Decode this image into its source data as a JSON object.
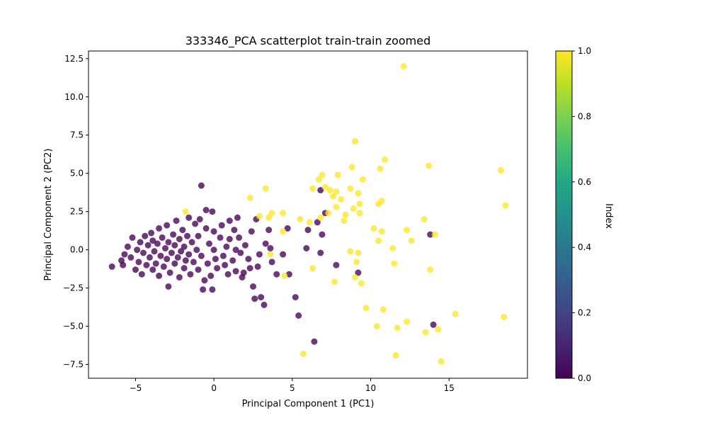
{
  "chart_data": {
    "type": "scatter",
    "title": "333346_PCA scatterplot train-train zoomed",
    "xlabel": "Principal Component 1 (PC1)",
    "ylabel": "Principal Component 2 (PC2)",
    "xlim": [
      -8.0,
      20.0
    ],
    "ylim": [
      -8.4,
      13.0
    ],
    "xticks": [
      -5,
      0,
      5,
      10,
      15
    ],
    "xtick_labels": [
      "−5",
      "0",
      "5",
      "10",
      "15"
    ],
    "yticks": [
      -7.5,
      -5.0,
      -2.5,
      0.0,
      2.5,
      5.0,
      7.5,
      10.0,
      12.5
    ],
    "ytick_labels": [
      "−7.5",
      "−5.0",
      "−2.5",
      "0.0",
      "2.5",
      "5.0",
      "7.5",
      "10.0",
      "12.5"
    ],
    "grid": false,
    "colorbar": {
      "label": "Index",
      "colormap": "viridis",
      "range": [
        0.0,
        1.0
      ],
      "ticks": [
        0.0,
        0.2,
        0.4,
        0.6,
        0.8,
        1.0
      ],
      "tick_labels": [
        "0.0",
        "0.2",
        "0.4",
        "0.6",
        "0.8",
        "1.0"
      ]
    },
    "colors": {
      "index_0": "#440154",
      "index_1": "#fde725"
    },
    "series": [
      {
        "name": "0",
        "color": "#440154",
        "points": [
          [
            -6.5,
            -1.1
          ],
          [
            -5.9,
            -0.7
          ],
          [
            -5.7,
            -0.3
          ],
          [
            -5.8,
            -1.0
          ],
          [
            -5.5,
            0.2
          ],
          [
            -5.3,
            -0.5
          ],
          [
            -5.2,
            0.8
          ],
          [
            -5.0,
            -1.3
          ],
          [
            -4.9,
            0.0
          ],
          [
            -4.8,
            -0.8
          ],
          [
            -4.7,
            0.5
          ],
          [
            -4.6,
            -1.6
          ],
          [
            -4.5,
            -0.2
          ],
          [
            -4.4,
            0.9
          ],
          [
            -4.3,
            -1.0
          ],
          [
            -4.2,
            0.3
          ],
          [
            -4.1,
            -0.5
          ],
          [
            -4.0,
            1.1
          ],
          [
            -3.9,
            -1.3
          ],
          [
            -3.9,
            0.6
          ],
          [
            -3.8,
            -0.1
          ],
          [
            -3.7,
            -0.9
          ],
          [
            -3.6,
            0.4
          ],
          [
            -3.5,
            1.4
          ],
          [
            -3.5,
            -1.7
          ],
          [
            -3.4,
            -0.4
          ],
          [
            -3.3,
            0.8
          ],
          [
            -3.2,
            -1.1
          ],
          [
            -3.1,
            0.1
          ],
          [
            -3.0,
            -0.6
          ],
          [
            -3.0,
            1.6
          ],
          [
            -2.9,
            -2.4
          ],
          [
            -2.9,
            0.5
          ],
          [
            -2.8,
            -1.5
          ],
          [
            -2.7,
            -0.2
          ],
          [
            -2.6,
            1.0
          ],
          [
            -2.5,
            -0.9
          ],
          [
            -2.5,
            0.3
          ],
          [
            -2.4,
            1.9
          ],
          [
            -2.3,
            -0.5
          ],
          [
            -2.2,
            -1.8
          ],
          [
            -2.2,
            0.7
          ],
          [
            -2.1,
            -0.1
          ],
          [
            -2.0,
            1.3
          ],
          [
            -1.9,
            -1.2
          ],
          [
            -1.9,
            0.2
          ],
          [
            -1.8,
            -0.7
          ],
          [
            -1.7,
            0.9
          ],
          [
            -1.6,
            2.1
          ],
          [
            -1.6,
            -0.3
          ],
          [
            -1.5,
            -1.6
          ],
          [
            -1.4,
            0.5
          ],
          [
            -1.3,
            -0.8
          ],
          [
            -1.2,
            1.7
          ],
          [
            -1.1,
            0.0
          ],
          [
            -1.0,
            -1.3
          ],
          [
            -1.0,
            0.9
          ],
          [
            -0.9,
            2.0
          ],
          [
            -0.8,
            -0.4
          ],
          [
            -0.8,
            4.2
          ],
          [
            -0.7,
            -2.6
          ],
          [
            -0.6,
            -2.0
          ],
          [
            -0.5,
            2.6
          ],
          [
            -0.5,
            1.4
          ],
          [
            -0.4,
            -0.9
          ],
          [
            -0.3,
            0.4
          ],
          [
            -0.2,
            -1.7
          ],
          [
            -0.1,
            2.5
          ],
          [
            -0.1,
            -2.6
          ],
          [
            0.0,
            1.2
          ],
          [
            0.0,
            0.0
          ],
          [
            0.1,
            -0.6
          ],
          [
            0.2,
            -1.2
          ],
          [
            0.4,
            0.8
          ],
          [
            0.5,
            1.6
          ],
          [
            0.6,
            -0.4
          ],
          [
            0.7,
            -1.0
          ],
          [
            0.8,
            0.2
          ],
          [
            0.9,
            -1.6
          ],
          [
            1.0,
            1.9
          ],
          [
            1.0,
            0.7
          ],
          [
            1.2,
            -0.7
          ],
          [
            1.3,
            1.3
          ],
          [
            1.4,
            0.0
          ],
          [
            1.4,
            -1.4
          ],
          [
            1.5,
            2.1
          ],
          [
            1.6,
            0.8
          ],
          [
            1.7,
            -0.2
          ],
          [
            1.8,
            -1.8
          ],
          [
            1.9,
            -1.5
          ],
          [
            2.0,
            0.3
          ],
          [
            2.2,
            -0.6
          ],
          [
            2.3,
            -1.2
          ],
          [
            2.4,
            1.2
          ],
          [
            2.5,
            -2.4
          ],
          [
            2.6,
            -3.2
          ],
          [
            2.7,
            2.0
          ],
          [
            2.8,
            -1.1
          ],
          [
            2.9,
            -0.3
          ],
          [
            3.0,
            -3.1
          ],
          [
            3.2,
            -3.6
          ],
          [
            3.3,
            0.4
          ],
          [
            3.5,
            1.3
          ],
          [
            3.6,
            0.1
          ],
          [
            3.7,
            -0.8
          ],
          [
            4.0,
            -1.6
          ],
          [
            4.4,
            -0.3
          ],
          [
            4.7,
            1.4
          ],
          [
            4.8,
            -1.6
          ],
          [
            5.2,
            -3.1
          ],
          [
            5.4,
            -4.3
          ],
          [
            5.9,
            0.1
          ],
          [
            6.0,
            1.3
          ],
          [
            6.4,
            -6.0
          ],
          [
            6.6,
            1.8
          ],
          [
            6.8,
            3.9
          ],
          [
            6.8,
            -0.2
          ],
          [
            6.9,
            1.0
          ],
          [
            7.1,
            2.4
          ],
          [
            7.8,
            -1.0
          ],
          [
            9.2,
            -1.5
          ],
          [
            13.8,
            1.0
          ],
          [
            14.0,
            -4.9
          ]
        ]
      },
      {
        "name": "1",
        "color": "#fde725",
        "points": [
          [
            -1.8,
            2.5
          ],
          [
            2.3,
            3.4
          ],
          [
            3.3,
            4.0
          ],
          [
            2.9,
            2.2
          ],
          [
            3.5,
            2.1
          ],
          [
            3.7,
            2.4
          ],
          [
            4.4,
            2.4
          ],
          [
            4.4,
            1.2
          ],
          [
            4.5,
            -1.7
          ],
          [
            3.6,
            -0.3
          ],
          [
            5.5,
            2.0
          ],
          [
            5.7,
            -6.8
          ],
          [
            6.1,
            1.8
          ],
          [
            6.3,
            4.0
          ],
          [
            6.3,
            -1.2
          ],
          [
            6.7,
            4.6
          ],
          [
            6.9,
            4.9
          ],
          [
            6.8,
            2.1
          ],
          [
            7.1,
            4.1
          ],
          [
            7.3,
            2.4
          ],
          [
            7.4,
            3.9
          ],
          [
            7.6,
            3.5
          ],
          [
            7.7,
            -2.1
          ],
          [
            7.8,
            2.8
          ],
          [
            7.8,
            3.8
          ],
          [
            7.9,
            4.9
          ],
          [
            8.1,
            3.3
          ],
          [
            8.3,
            1.9
          ],
          [
            8.4,
            2.3
          ],
          [
            8.7,
            4.0
          ],
          [
            8.7,
            -0.1
          ],
          [
            8.8,
            5.4
          ],
          [
            8.9,
            2.7
          ],
          [
            9.0,
            7.1
          ],
          [
            9.0,
            -1.8
          ],
          [
            9.1,
            -0.8
          ],
          [
            9.2,
            -0.2
          ],
          [
            9.2,
            3.7
          ],
          [
            9.3,
            2.4
          ],
          [
            9.3,
            3.0
          ],
          [
            9.4,
            -2.2
          ],
          [
            9.5,
            4.6
          ],
          [
            9.7,
            -3.8
          ],
          [
            10.2,
            1.4
          ],
          [
            10.4,
            -5.0
          ],
          [
            10.5,
            0.6
          ],
          [
            10.5,
            3.0
          ],
          [
            10.6,
            5.3
          ],
          [
            10.7,
            1.2
          ],
          [
            10.7,
            3.2
          ],
          [
            10.8,
            -3.9
          ],
          [
            10.9,
            5.9
          ],
          [
            11.4,
            0.1
          ],
          [
            11.5,
            -0.9
          ],
          [
            11.6,
            -6.9
          ],
          [
            11.7,
            -5.1
          ],
          [
            12.1,
            12.0
          ],
          [
            12.3,
            -4.7
          ],
          [
            12.3,
            1.3
          ],
          [
            12.6,
            0.6
          ],
          [
            13.4,
            2.0
          ],
          [
            13.5,
            -5.4
          ],
          [
            13.7,
            5.5
          ],
          [
            13.8,
            -1.3
          ],
          [
            14.1,
            1.0
          ],
          [
            14.3,
            -5.2
          ],
          [
            14.5,
            -7.3
          ],
          [
            15.4,
            -4.2
          ],
          [
            18.3,
            5.2
          ],
          [
            18.5,
            -4.4
          ],
          [
            18.6,
            2.9
          ]
        ]
      }
    ]
  }
}
